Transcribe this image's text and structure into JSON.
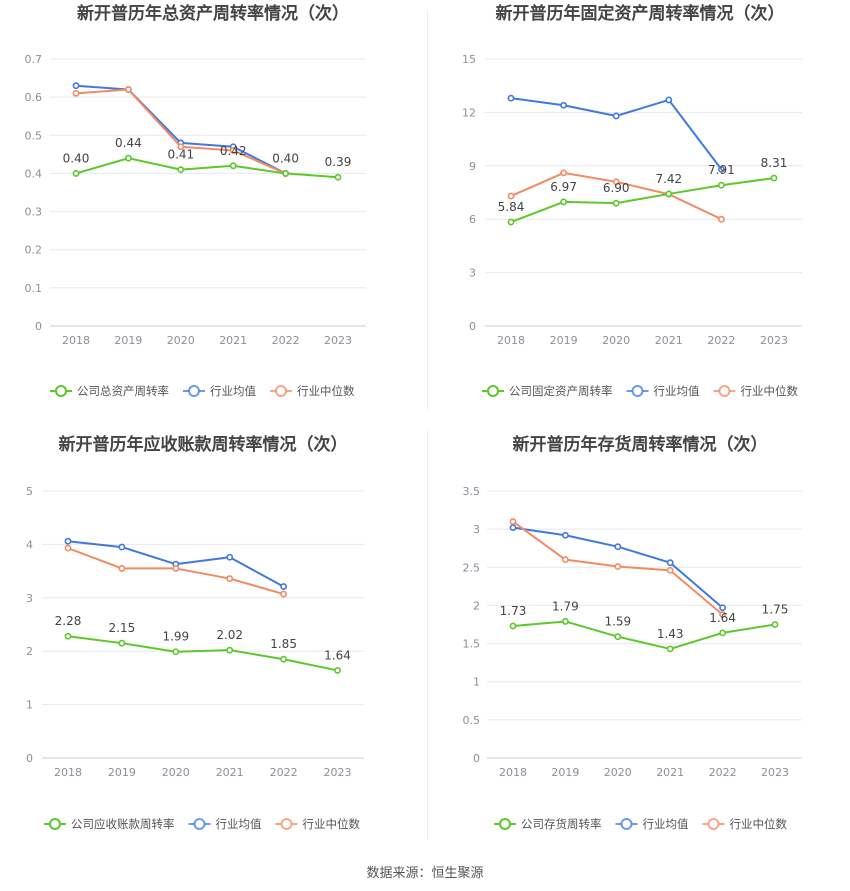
{
  "legend_common": {
    "avg": "行业均值",
    "median": "行业中位数"
  },
  "colors": {
    "company": "#5cc82a",
    "avg": "#3f78e0",
    "median": "#f28a62",
    "grid": "#e6e8ee",
    "axis": "#8a8f99",
    "title": "#444444"
  },
  "footer": {
    "source": "数据来源：恒生聚源"
  },
  "chart_data": [
    {
      "type": "line",
      "title": "新开普历年总资产周转率情况（次）",
      "x": [
        "2018",
        "2019",
        "2020",
        "2021",
        "2022",
        "2023"
      ],
      "ylim": [
        0,
        0.7
      ],
      "yticks": [
        0,
        0.1,
        0.2,
        0.3,
        0.4,
        0.5,
        0.6,
        0.7
      ],
      "ytick_labels": [
        "0",
        "0.1",
        "0.2",
        "0.3",
        "0.4",
        "0.5",
        "0.6",
        "0.7"
      ],
      "grid": true,
      "legend_position": "bottom",
      "series": [
        {
          "name": "公司总资产周转率",
          "role": "company",
          "values": [
            0.4,
            0.44,
            0.41,
            0.42,
            0.4,
            0.39
          ],
          "labels": [
            "0.40",
            "0.44",
            "0.41",
            "0.42",
            "0.40",
            "0.39"
          ]
        },
        {
          "name": "行业均值",
          "role": "avg",
          "values": [
            0.63,
            0.62,
            0.48,
            0.47,
            0.4,
            null
          ]
        },
        {
          "name": "行业中位数",
          "role": "median",
          "values": [
            0.61,
            0.62,
            0.47,
            0.46,
            0.4,
            null
          ]
        }
      ]
    },
    {
      "type": "line",
      "title": "新开普历年固定资产周转率情况（次）",
      "x": [
        "2018",
        "2019",
        "2020",
        "2021",
        "2022",
        "2023"
      ],
      "ylim": [
        0,
        15
      ],
      "yticks": [
        0,
        3,
        6,
        9,
        12,
        15
      ],
      "ytick_labels": [
        "0",
        "3",
        "6",
        "9",
        "12",
        "15"
      ],
      "grid": true,
      "legend_position": "bottom",
      "series": [
        {
          "name": "公司固定资产周转率",
          "role": "company",
          "values": [
            5.84,
            6.97,
            6.9,
            7.42,
            7.91,
            8.31
          ],
          "labels": [
            "5.84",
            "6.97",
            "6.90",
            "7.42",
            "7.91",
            "8.31"
          ]
        },
        {
          "name": "行业均值",
          "role": "avg",
          "values": [
            12.8,
            12.4,
            11.8,
            12.7,
            8.8,
            null
          ]
        },
        {
          "name": "行业中位数",
          "role": "median",
          "values": [
            7.3,
            8.6,
            8.1,
            7.4,
            6.0,
            null
          ]
        }
      ]
    },
    {
      "type": "line",
      "title": "新开普历年应收账款周转率情况（次）",
      "x": [
        "2018",
        "2019",
        "2020",
        "2021",
        "2022",
        "2023"
      ],
      "ylim": [
        0,
        5
      ],
      "yticks": [
        0,
        1,
        2,
        3,
        4,
        5
      ],
      "ytick_labels": [
        "0",
        "1",
        "2",
        "3",
        "4",
        "5"
      ],
      "grid": true,
      "legend_position": "bottom",
      "series": [
        {
          "name": "公司应收账款周转率",
          "role": "company",
          "values": [
            2.28,
            2.15,
            1.99,
            2.02,
            1.85,
            1.64
          ],
          "labels": [
            "2.28",
            "2.15",
            "1.99",
            "2.02",
            "1.85",
            "1.64"
          ]
        },
        {
          "name": "行业均值",
          "role": "avg",
          "values": [
            4.06,
            3.95,
            3.63,
            3.76,
            3.21,
            null
          ]
        },
        {
          "name": "行业中位数",
          "role": "median",
          "values": [
            3.93,
            3.55,
            3.55,
            3.36,
            3.07,
            null
          ]
        }
      ]
    },
    {
      "type": "line",
      "title": "新开普历年存货周转率情况（次）",
      "x": [
        "2018",
        "2019",
        "2020",
        "2021",
        "2022",
        "2023"
      ],
      "ylim": [
        0,
        3.5
      ],
      "yticks": [
        0,
        0.5,
        1,
        1.5,
        2,
        2.5,
        3,
        3.5
      ],
      "ytick_labels": [
        "0",
        "0.5",
        "1",
        "1.5",
        "2",
        "2.5",
        "3",
        "3.5"
      ],
      "grid": true,
      "legend_position": "bottom",
      "series": [
        {
          "name": "公司存货周转率",
          "role": "company",
          "values": [
            1.73,
            1.79,
            1.59,
            1.43,
            1.64,
            1.75
          ],
          "labels": [
            "1.73",
            "1.79",
            "1.59",
            "1.43",
            "1.64",
            "1.75"
          ]
        },
        {
          "name": "行业均值",
          "role": "avg",
          "values": [
            3.02,
            2.92,
            2.77,
            2.56,
            1.97,
            null
          ]
        },
        {
          "name": "行业中位数",
          "role": "median",
          "values": [
            3.1,
            2.6,
            2.51,
            2.46,
            1.88,
            null
          ]
        }
      ]
    }
  ]
}
